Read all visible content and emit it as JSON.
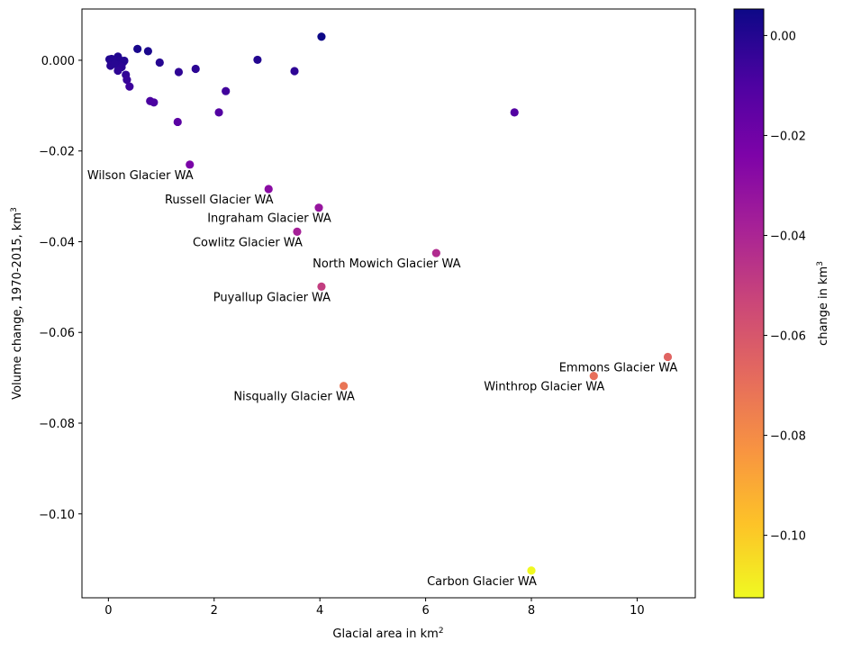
{
  "chart_data": {
    "type": "scatter",
    "xlabel": "Glacial area in km",
    "xlabel_sup": "2",
    "ylabel": "Volume change, 1970-2015, km",
    "ylabel_sup": "3",
    "xlim": [
      -0.5,
      11.1
    ],
    "ylim": [
      -0.1185,
      0.0113
    ],
    "xticks": [
      0,
      2,
      4,
      6,
      8,
      10
    ],
    "xtick_labels": [
      "0",
      "2",
      "4",
      "6",
      "8",
      "10"
    ],
    "yticks": [
      0.0,
      -0.02,
      -0.04,
      -0.06,
      -0.08,
      -0.1
    ],
    "ytick_labels": [
      "0.000",
      "−0.02",
      "−0.04",
      "−0.06",
      "−0.08",
      "−0.10"
    ],
    "colorbar": {
      "label": "change in km",
      "label_sup": "3",
      "colormap": "plasma",
      "range": [
        -0.1125,
        0.0053
      ],
      "ticks": [
        0.0,
        -0.02,
        -0.04,
        -0.06,
        -0.08,
        -0.1
      ],
      "tick_labels": [
        "0.00",
        "−0.02",
        "−0.04",
        "−0.06",
        "−0.08",
        "−0.10"
      ]
    },
    "points": [
      {
        "x": 4.03,
        "y": 0.0052
      },
      {
        "x": 0.55,
        "y": 0.0025
      },
      {
        "x": 0.75,
        "y": 0.002
      },
      {
        "x": 0.18,
        "y": 0.0008
      },
      {
        "x": 0.02,
        "y": 0.0002
      },
      {
        "x": 0.06,
        "y": 0.0003
      },
      {
        "x": 0.1,
        "y": 0.0001
      },
      {
        "x": 0.05,
        "y": -0.0003
      },
      {
        "x": 0.14,
        "y": -0.0002
      },
      {
        "x": 0.22,
        "y": 0.0
      },
      {
        "x": 0.28,
        "y": -0.0004
      },
      {
        "x": 0.3,
        "y": -0.0001
      },
      {
        "x": 0.2,
        "y": -0.0011
      },
      {
        "x": 0.04,
        "y": -0.0012
      },
      {
        "x": 0.12,
        "y": -0.0008
      },
      {
        "x": 0.25,
        "y": -0.0015
      },
      {
        "x": 0.18,
        "y": -0.0023
      },
      {
        "x": 0.33,
        "y": -0.0032
      },
      {
        "x": 0.35,
        "y": -0.0043
      },
      {
        "x": 0.4,
        "y": -0.0058
      },
      {
        "x": 0.97,
        "y": -0.0005
      },
      {
        "x": 2.82,
        "y": 0.0001
      },
      {
        "x": 1.33,
        "y": -0.0026
      },
      {
        "x": 1.65,
        "y": -0.0019
      },
      {
        "x": 3.52,
        "y": -0.0024
      },
      {
        "x": 2.22,
        "y": -0.0068
      },
      {
        "x": 0.79,
        "y": -0.009
      },
      {
        "x": 0.86,
        "y": -0.0093
      },
      {
        "x": 2.09,
        "y": -0.0115
      },
      {
        "x": 7.68,
        "y": -0.0115
      },
      {
        "x": 1.31,
        "y": -0.0136
      },
      {
        "x": 1.54,
        "y": -0.023
      },
      {
        "x": 3.03,
        "y": -0.0284
      },
      {
        "x": 3.98,
        "y": -0.0325
      },
      {
        "x": 3.57,
        "y": -0.0378
      },
      {
        "x": 6.2,
        "y": -0.0425
      },
      {
        "x": 4.03,
        "y": -0.0499
      },
      {
        "x": 10.58,
        "y": -0.0654
      },
      {
        "x": 9.18,
        "y": -0.0696
      },
      {
        "x": 4.45,
        "y": -0.0718
      },
      {
        "x": 8.0,
        "y": -0.1125
      }
    ],
    "annotations": [
      {
        "text": "Wilson Glacier WA",
        "x": 1.54,
        "y": -0.023
      },
      {
        "text": "Russell Glacier WA",
        "x": 3.03,
        "y": -0.0284
      },
      {
        "text": "Ingraham Glacier WA",
        "x": 3.98,
        "y": -0.0325
      },
      {
        "text": "Cowlitz Glacier WA",
        "x": 3.57,
        "y": -0.0378
      },
      {
        "text": "North Mowich Glacier WA",
        "x": 6.2,
        "y": -0.0425
      },
      {
        "text": "Puyallup Glacier WA",
        "x": 4.03,
        "y": -0.0499
      },
      {
        "text": "Emmons Glacier WA",
        "x": 10.58,
        "y": -0.0654
      },
      {
        "text": "Winthrop Glacier WA",
        "x": 9.18,
        "y": -0.0696
      },
      {
        "text": "Nisqually Glacier WA",
        "x": 4.45,
        "y": -0.0718
      },
      {
        "text": "Carbon Glacier WA",
        "x": 8.0,
        "y": -0.1125
      }
    ]
  }
}
